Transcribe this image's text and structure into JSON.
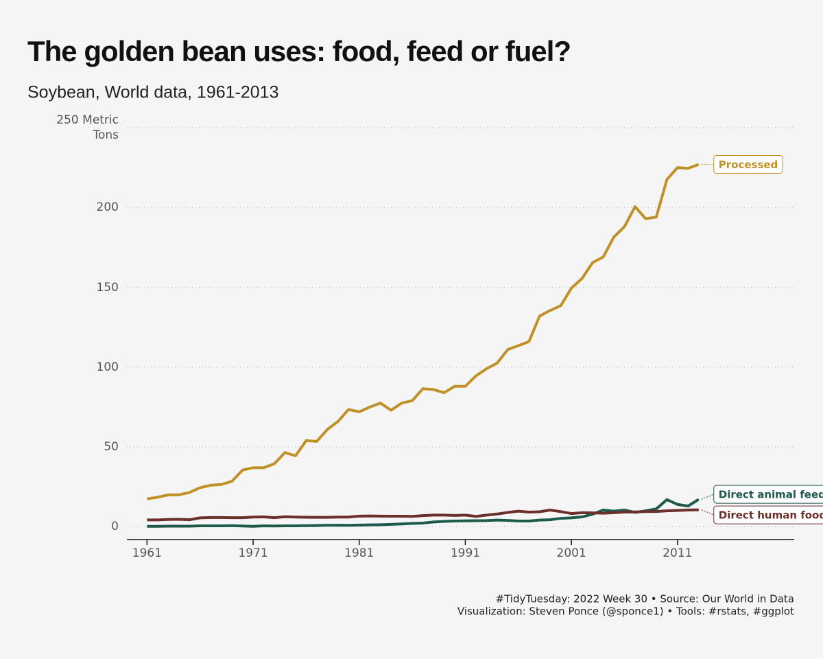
{
  "chart_data": {
    "type": "line",
    "title": "The golden bean uses: food, feed or fuel?",
    "subtitle": "Soybean, World data, 1961-2013",
    "caption": [
      "#TidyTuesday: 2022 Week 30 • Source: Our World in Data",
      "Visualization: Steven Ponce (@sponce1) • Tools: #rstats, #ggplot"
    ],
    "x": [
      1961,
      1962,
      1963,
      1964,
      1965,
      1966,
      1967,
      1968,
      1969,
      1970,
      1971,
      1972,
      1973,
      1974,
      1975,
      1976,
      1977,
      1978,
      1979,
      1980,
      1981,
      1982,
      1983,
      1984,
      1985,
      1986,
      1987,
      1988,
      1989,
      1990,
      1991,
      1992,
      1993,
      1994,
      1995,
      1996,
      1997,
      1998,
      1999,
      2000,
      2001,
      2002,
      2003,
      2004,
      2005,
      2006,
      2007,
      2008,
      2009,
      2010,
      2011,
      2012,
      2013
    ],
    "series": [
      {
        "name": "Processed",
        "color": "#bf9126",
        "values": [
          17.5,
          18.5,
          20,
          20,
          21.5,
          24.5,
          26,
          26.5,
          28.5,
          35.5,
          37,
          37,
          39.5,
          46.5,
          44.5,
          54,
          53.5,
          61,
          66,
          73.5,
          72,
          75,
          77.5,
          73,
          77.5,
          79,
          86.5,
          86,
          84,
          88,
          88,
          94.5,
          99,
          102.5,
          111,
          113.5,
          116,
          132,
          135.5,
          138.5,
          149.5,
          155.5,
          165.5,
          169,
          181.5,
          188,
          200.5,
          193,
          194,
          217.5,
          225,
          224.5,
          227
        ]
      },
      {
        "name": "Direct animal feed",
        "color": "#1d5a4c",
        "values": [
          0.3,
          0.3,
          0.4,
          0.4,
          0.4,
          0.6,
          0.6,
          0.6,
          0.7,
          0.5,
          0.3,
          0.6,
          0.5,
          0.6,
          0.6,
          0.7,
          0.8,
          1.0,
          1.0,
          0.9,
          1.1,
          1.2,
          1.3,
          1.5,
          1.8,
          2.1,
          2.3,
          3.0,
          3.4,
          3.6,
          3.7,
          3.8,
          3.9,
          4.2,
          4.0,
          3.6,
          3.6,
          4.2,
          4.4,
          5.3,
          5.6,
          6.2,
          7.9,
          10.5,
          9.8,
          10.5,
          9.0,
          10.0,
          11.2,
          17.0,
          14.0,
          13.0,
          17.2
        ]
      },
      {
        "name": "Direct human food",
        "color": "#6b2f2c",
        "values": [
          4.3,
          4.3,
          4.6,
          4.7,
          4.4,
          5.6,
          5.8,
          5.8,
          5.7,
          5.7,
          6.1,
          6.2,
          5.7,
          6.3,
          6.1,
          6.0,
          5.9,
          5.9,
          6.1,
          6.1,
          6.7,
          6.8,
          6.7,
          6.6,
          6.6,
          6.5,
          7.0,
          7.3,
          7.3,
          7.1,
          7.3,
          6.5,
          7.3,
          8.0,
          9.0,
          9.8,
          9.2,
          9.4,
          10.5,
          9.5,
          8.3,
          8.8,
          8.7,
          8.5,
          8.8,
          9.2,
          9.3,
          9.5,
          9.6,
          10.0,
          10.2,
          10.5,
          10.6
        ]
      }
    ],
    "xlim": [
      1959.1,
      2022.0
    ],
    "xticks": [
      1961,
      1971,
      1981,
      1991,
      2001,
      2011
    ],
    "ylim": [
      -8,
      250
    ],
    "yticks": [
      0,
      50,
      100,
      150,
      200,
      {
        "value": 250,
        "label": "250 Metric Tons"
      }
    ],
    "grid": true
  }
}
